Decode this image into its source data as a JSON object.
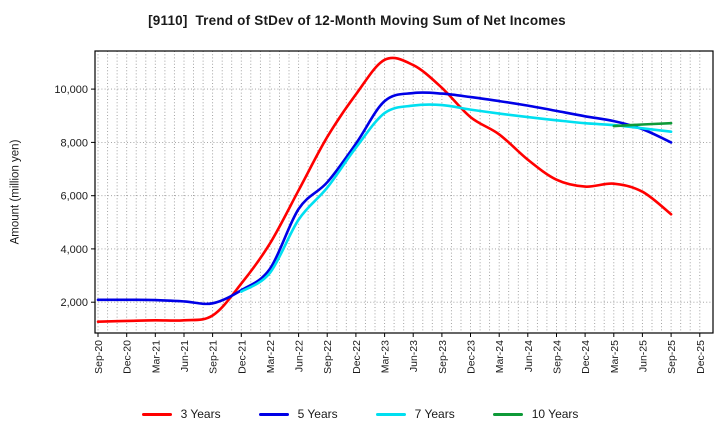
{
  "title": "[9110]  Trend of StDev of 12-Month Moving Sum of Net Incomes",
  "colors": {
    "background": "#ffffff",
    "grid": "#999999",
    "axis_border": "#000000",
    "text": "#1a1a1a",
    "series_red": "#ff0000",
    "series_blue": "#0000e6",
    "series_cyan": "#00dff0",
    "series_green": "#0e9a38"
  },
  "chart_data": {
    "type": "line",
    "title": "[9110]  Trend of StDev of 12-Month Moving Sum of Net Incomes",
    "xlabel": "",
    "ylabel": "Amount (million yen)",
    "grid": true,
    "legend_position": "bottom",
    "ylim": [
      845,
      11430
    ],
    "yticks": [
      2000,
      4000,
      6000,
      8000,
      10000
    ],
    "ytick_labels": [
      "2,000",
      "4,000",
      "6,000",
      "8,000",
      "10,000"
    ],
    "categories": [
      "Sep-20",
      "Dec-20",
      "Mar-21",
      "Jun-21",
      "Sep-21",
      "Dec-21",
      "Mar-22",
      "Jun-22",
      "Sep-22",
      "Dec-22",
      "Mar-23",
      "Jun-23",
      "Sep-23",
      "Dec-23",
      "Mar-24",
      "Jun-24",
      "Sep-24",
      "Dec-24",
      "Mar-25",
      "Jun-25",
      "Sep-25",
      "Dec-25"
    ],
    "minor_vertical_gridlines_per_quarter": 3,
    "series": [
      {
        "name": "3 Years",
        "color": "#ff0000",
        "values": [
          1270,
          1300,
          1320,
          1320,
          1500,
          2700,
          4200,
          6200,
          8200,
          9800,
          11100,
          10900,
          10050,
          8950,
          8300,
          7350,
          6600,
          6340,
          6450,
          6150,
          5300,
          null
        ]
      },
      {
        "name": "5 Years",
        "color": "#0000e6",
        "values": [
          2090,
          2090,
          2080,
          2030,
          1960,
          2450,
          3250,
          5500,
          6500,
          7950,
          9550,
          9850,
          9830,
          9700,
          9550,
          9380,
          9180,
          8980,
          8800,
          8500,
          8000,
          null
        ]
      },
      {
        "name": "7 Years",
        "color": "#00dff0",
        "values": [
          null,
          null,
          null,
          null,
          null,
          2400,
          3100,
          5100,
          6300,
          7800,
          9100,
          9380,
          9400,
          9230,
          9080,
          8950,
          8830,
          8720,
          8650,
          8530,
          8400,
          null
        ]
      },
      {
        "name": "10 Years",
        "color": "#0e9a38",
        "values": [
          null,
          null,
          null,
          null,
          null,
          null,
          null,
          null,
          null,
          null,
          null,
          null,
          null,
          null,
          null,
          null,
          null,
          null,
          8610,
          8670,
          8720,
          null
        ]
      }
    ]
  }
}
